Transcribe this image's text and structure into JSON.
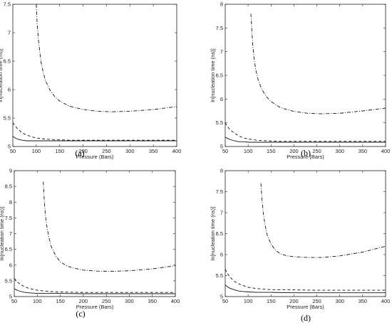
{
  "chart_data": [
    {
      "type": "line",
      "caption": "(a)",
      "xlabel": "Pressure (Bars)",
      "ylabel": "ln[nucleation time (ns)]",
      "xlim": [
        50,
        400
      ],
      "ylim": [
        5,
        7.5
      ],
      "xticks": [
        "50",
        "100",
        "150",
        "200",
        "250",
        "300",
        "350",
        "400"
      ],
      "yticks": [
        "5",
        "5.5",
        "6",
        "6.5",
        "7",
        "7.5"
      ],
      "grid": false,
      "series": [
        {
          "style": "solid",
          "x": [
            50,
            55,
            60,
            70,
            80,
            90,
            100,
            120,
            150,
            200,
            250,
            300,
            350,
            400
          ],
          "values": [
            5.18,
            5.15,
            5.13,
            5.11,
            5.1,
            5.1,
            5.1,
            5.1,
            5.1,
            5.1,
            5.1,
            5.1,
            5.1,
            5.1
          ]
        },
        {
          "style": "dashed",
          "x": [
            50,
            55,
            60,
            70,
            80,
            90,
            100,
            120,
            140,
            170,
            200,
            250,
            300,
            350,
            400
          ],
          "values": [
            5.42,
            5.36,
            5.31,
            5.24,
            5.2,
            5.17,
            5.15,
            5.13,
            5.12,
            5.11,
            5.11,
            5.11,
            5.11,
            5.11,
            5.11
          ]
        },
        {
          "style": "dashdot",
          "x": [
            100,
            102,
            105,
            110,
            115,
            120,
            130,
            140,
            150,
            170,
            200,
            230,
            260,
            300,
            350,
            400
          ],
          "values": [
            7.5,
            7.15,
            6.85,
            6.5,
            6.3,
            6.15,
            5.98,
            5.87,
            5.8,
            5.71,
            5.65,
            5.62,
            5.61,
            5.62,
            5.65,
            5.7
          ]
        }
      ]
    },
    {
      "type": "line",
      "caption": "(b)",
      "xlabel": "Pressure (Bars)",
      "ylabel": "ln[nucleation time (ns)]",
      "xlim": [
        50,
        400
      ],
      "ylim": [
        5,
        8
      ],
      "xticks": [
        "50",
        "100",
        "150",
        "200",
        "250",
        "300",
        "350",
        "400"
      ],
      "yticks": [
        "5",
        "5.5",
        "6",
        "6.5",
        "7",
        "7.5",
        "8"
      ],
      "grid": false,
      "series": [
        {
          "style": "solid",
          "x": [
            50,
            55,
            60,
            70,
            80,
            90,
            100,
            120,
            150,
            200,
            250,
            300,
            350,
            400
          ],
          "values": [
            5.2,
            5.17,
            5.15,
            5.12,
            5.1,
            5.1,
            5.09,
            5.09,
            5.09,
            5.09,
            5.09,
            5.09,
            5.09,
            5.09
          ]
        },
        {
          "style": "dashed",
          "x": [
            50,
            55,
            60,
            70,
            80,
            90,
            100,
            120,
            140,
            170,
            200,
            250,
            300,
            350,
            400
          ],
          "values": [
            5.5,
            5.42,
            5.36,
            5.28,
            5.22,
            5.18,
            5.16,
            5.13,
            5.12,
            5.11,
            5.11,
            5.11,
            5.11,
            5.11,
            5.11
          ]
        },
        {
          "style": "dashdot",
          "x": [
            106,
            108,
            110,
            113,
            117,
            122,
            130,
            140,
            150,
            170,
            200,
            230,
            260,
            300,
            350,
            400
          ],
          "values": [
            7.8,
            7.45,
            7.15,
            6.85,
            6.6,
            6.4,
            6.2,
            6.05,
            5.95,
            5.82,
            5.74,
            5.7,
            5.69,
            5.7,
            5.75,
            5.81
          ]
        }
      ]
    },
    {
      "type": "line",
      "caption": "(c)",
      "xlabel": "Pressure (Bars)",
      "ylabel": "ln[nucleation time (ns)]",
      "xlim": [
        50,
        400
      ],
      "ylim": [
        5,
        9
      ],
      "xticks": [
        "50",
        "100",
        "150",
        "200",
        "250",
        "300",
        "350",
        "400"
      ],
      "yticks": [
        "5",
        "5.5",
        "6",
        "6.5",
        "7",
        "7.5",
        "8",
        "8.5",
        "9"
      ],
      "grid": false,
      "series": [
        {
          "style": "solid",
          "x": [
            50,
            55,
            60,
            70,
            80,
            90,
            100,
            120,
            150,
            200,
            250,
            300,
            350,
            400
          ],
          "values": [
            5.25,
            5.21,
            5.18,
            5.14,
            5.12,
            5.11,
            5.1,
            5.1,
            5.1,
            5.09,
            5.09,
            5.09,
            5.09,
            5.09
          ]
        },
        {
          "style": "dashed",
          "x": [
            50,
            55,
            60,
            70,
            80,
            90,
            100,
            120,
            140,
            170,
            200,
            250,
            300,
            350,
            400
          ],
          "values": [
            5.58,
            5.49,
            5.42,
            5.33,
            5.27,
            5.23,
            5.2,
            5.17,
            5.15,
            5.14,
            5.13,
            5.13,
            5.13,
            5.13,
            5.13
          ]
        },
        {
          "style": "dashdot",
          "x": [
            113,
            115,
            117,
            120,
            125,
            130,
            140,
            150,
            165,
            180,
            200,
            230,
            260,
            300,
            350,
            400
          ],
          "values": [
            8.65,
            8.1,
            7.7,
            7.3,
            6.9,
            6.6,
            6.3,
            6.1,
            5.97,
            5.9,
            5.84,
            5.81,
            5.8,
            5.82,
            5.88,
            5.98
          ]
        }
      ]
    },
    {
      "type": "line",
      "caption": "(d)",
      "xlabel": "Pressure (Bars)",
      "ylabel": "ln[nucleation time (ns)]",
      "xlim": [
        50,
        400
      ],
      "ylim": [
        5,
        8
      ],
      "xticks": [
        "50",
        "100",
        "150",
        "200",
        "250",
        "300",
        "350",
        "400"
      ],
      "yticks": [
        "5",
        "5.5",
        "6",
        "6.5",
        "7",
        "7.5",
        "8"
      ],
      "grid": false,
      "series": [
        {
          "style": "solid",
          "x": [
            50,
            55,
            60,
            70,
            80,
            90,
            100,
            120,
            150,
            200,
            250,
            300,
            350,
            400
          ],
          "values": [
            5.28,
            5.23,
            5.2,
            5.16,
            5.13,
            5.12,
            5.11,
            5.1,
            5.1,
            5.09,
            5.09,
            5.09,
            5.09,
            5.09
          ]
        },
        {
          "style": "dashed",
          "x": [
            50,
            55,
            60,
            70,
            80,
            90,
            100,
            120,
            140,
            170,
            200,
            250,
            300,
            350,
            400
          ],
          "values": [
            5.65,
            5.55,
            5.47,
            5.36,
            5.3,
            5.26,
            5.22,
            5.19,
            5.17,
            5.16,
            5.16,
            5.15,
            5.15,
            5.15,
            5.15
          ]
        },
        {
          "style": "dashdot",
          "x": [
            128,
            130,
            133,
            137,
            142,
            150,
            160,
            170,
            185,
            200,
            230,
            260,
            300,
            350,
            400
          ],
          "values": [
            7.7,
            7.35,
            7.0,
            6.7,
            6.45,
            6.25,
            6.1,
            6.02,
            5.97,
            5.95,
            5.93,
            5.93,
            5.97,
            6.06,
            6.2
          ]
        }
      ]
    }
  ]
}
